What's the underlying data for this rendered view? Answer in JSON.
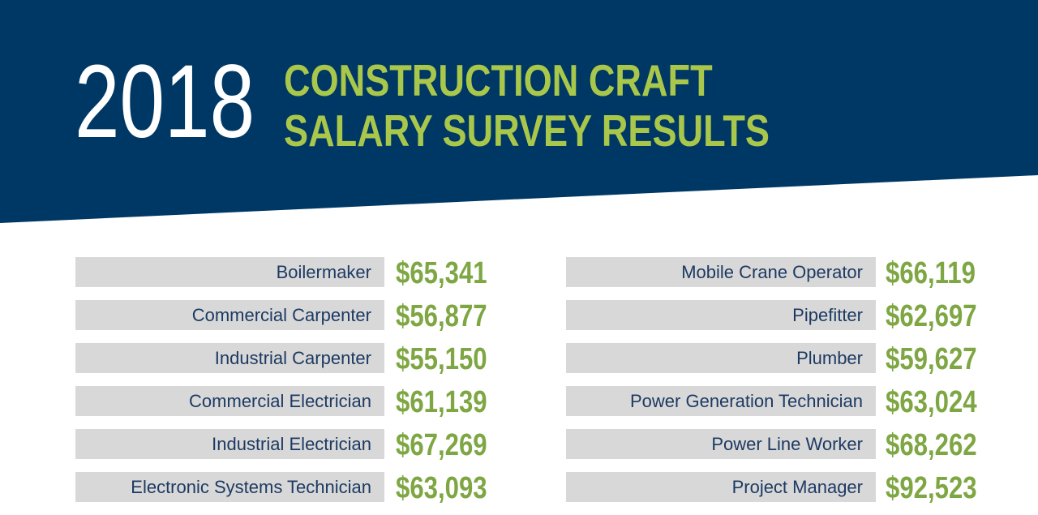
{
  "header": {
    "year": "2018",
    "title_line1": "CONSTRUCTION CRAFT",
    "title_line2": "SALARY SURVEY RESULTS"
  },
  "colors": {
    "banner": "#003865",
    "headline": "#a9c74a",
    "value": "#7ea743",
    "label_bg": "#d8d8d8",
    "label_text": "#1d3a63"
  },
  "chart_data": {
    "type": "table",
    "title": "2018 CONSTRUCTION CRAFT SALARY SURVEY RESULTS",
    "columns": [
      [
        {
          "craft": "Boilermaker",
          "salary": "$65,341"
        },
        {
          "craft": "Commercial Carpenter",
          "salary": "$56,877"
        },
        {
          "craft": "Industrial Carpenter",
          "salary": "$55,150"
        },
        {
          "craft": "Commercial Electrician",
          "salary": "$61,139"
        },
        {
          "craft": "Industrial Electrician",
          "salary": "$67,269"
        },
        {
          "craft": "Electronic Systems Technician",
          "salary": "$63,093"
        }
      ],
      [
        {
          "craft": "Mobile Crane Operator",
          "salary": "$66,119"
        },
        {
          "craft": "Pipefitter",
          "salary": "$62,697"
        },
        {
          "craft": "Plumber",
          "salary": "$59,627"
        },
        {
          "craft": "Power Generation Technician",
          "salary": "$63,024"
        },
        {
          "craft": "Power Line Worker",
          "salary": "$68,262"
        },
        {
          "craft": "Project Manager",
          "salary": "$92,523"
        }
      ]
    ]
  }
}
